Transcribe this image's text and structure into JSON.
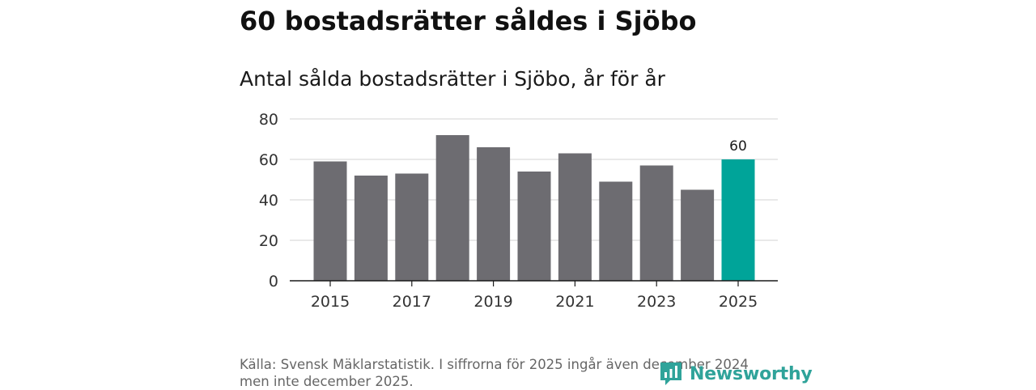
{
  "headline": "60 bostadsrätter såldes i Sjöbo",
  "subtitle": "Antal sålda bostadsrätter i Sjöbo, år för år",
  "chart_data": {
    "type": "bar",
    "title": "Antal sålda bostadsrätter i Sjöbo, år för år",
    "xlabel": "",
    "ylabel": "",
    "categories": [
      "2015",
      "2016",
      "2017",
      "2018",
      "2019",
      "2020",
      "2021",
      "2022",
      "2023",
      "2024",
      "2025"
    ],
    "values": [
      59,
      52,
      53,
      72,
      66,
      54,
      63,
      49,
      57,
      45,
      60
    ],
    "highlight": {
      "category": "2025",
      "label": "60",
      "color": "#00a499"
    },
    "bar_color": "#6d6c71",
    "ylim": [
      0,
      80
    ],
    "yticks": [
      0,
      20,
      40,
      60,
      80
    ],
    "xtick_labels": [
      "2015",
      "2017",
      "2019",
      "2021",
      "2023",
      "2025"
    ],
    "grid": true,
    "legend": "none"
  },
  "source_note": {
    "line1": "Källa: Svensk Mäklarstatistik. I siffrorna för 2025 ingår även december 2024",
    "line2": "men inte december 2025."
  },
  "logo": {
    "text": "Newsworthy",
    "icon": "newsworthy-logo-icon",
    "color": "#2fa39a"
  }
}
